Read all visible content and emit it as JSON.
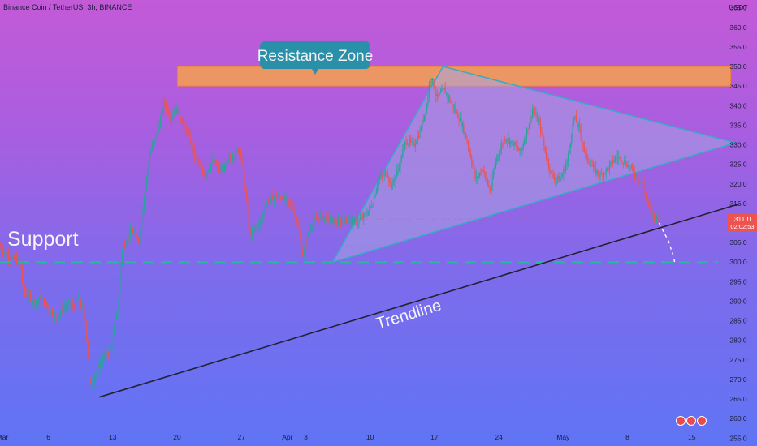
{
  "header": {
    "symbol_title": "Binance Coin / TetherUS, 3h, BINANCE"
  },
  "chart_data": {
    "type": "candlestick",
    "currency_label": "USDT",
    "ylim": [
      253,
      367
    ],
    "y_ticks": [
      255,
      260,
      265,
      270,
      275,
      280,
      285,
      290,
      295,
      300,
      305,
      310,
      315,
      320,
      325,
      330,
      335,
      340,
      345,
      350,
      355,
      360,
      365
    ],
    "x_range_days": [
      0,
      79
    ],
    "x_ticks": [
      {
        "label": "Mar",
        "day": 0
      },
      {
        "label": "6",
        "day": 5
      },
      {
        "label": "13",
        "day": 12
      },
      {
        "label": "20",
        "day": 19
      },
      {
        "label": "27",
        "day": 26
      },
      {
        "label": "Apr",
        "day": 31
      },
      {
        "label": "3",
        "day": 33
      },
      {
        "label": "10",
        "day": 40
      },
      {
        "label": "17",
        "day": 47
      },
      {
        "label": "24",
        "day": 54
      },
      {
        "label": "May",
        "day": 61
      },
      {
        "label": "8",
        "day": 68
      },
      {
        "label": "15",
        "day": 75
      }
    ],
    "current_price_label": "311.0",
    "countdown_label": "02:02:53",
    "current_price": 311.0,
    "price_path": [
      [
        0,
        304
      ],
      [
        1.2,
        301
      ],
      [
        2.3,
        300
      ],
      [
        2.6,
        293
      ],
      [
        3.6,
        290
      ],
      [
        4.5,
        291
      ],
      [
        5.5,
        288
      ],
      [
        6.2,
        286
      ],
      [
        7.2,
        289
      ],
      [
        8.2,
        289
      ],
      [
        8.6,
        291
      ],
      [
        9.4,
        285
      ],
      [
        9.8,
        268
      ],
      [
        10.5,
        272
      ],
      [
        11.4,
        276
      ],
      [
        12.2,
        278
      ],
      [
        12.9,
        290
      ],
      [
        13.4,
        304
      ],
      [
        14.3,
        308
      ],
      [
        15.2,
        306
      ],
      [
        15.8,
        318
      ],
      [
        16.4,
        328
      ],
      [
        17.2,
        333
      ],
      [
        17.9,
        341
      ],
      [
        18.6,
        337
      ],
      [
        19.3,
        339
      ],
      [
        20.3,
        334
      ],
      [
        20.9,
        330
      ],
      [
        21.3,
        327
      ],
      [
        22.3,
        322
      ],
      [
        23.2,
        326
      ],
      [
        24.2,
        323
      ],
      [
        25.2,
        327
      ],
      [
        26.2,
        329
      ],
      [
        26.8,
        318
      ],
      [
        27.2,
        307
      ],
      [
        28.3,
        310
      ],
      [
        29.2,
        316
      ],
      [
        30.2,
        317
      ],
      [
        31.2,
        316
      ],
      [
        32.2,
        313
      ],
      [
        33.0,
        302
      ],
      [
        33.8,
        309
      ],
      [
        34.8,
        312
      ],
      [
        35.7,
        311
      ],
      [
        36.8,
        310
      ],
      [
        37.8,
        311
      ],
      [
        38.8,
        310
      ],
      [
        39.8,
        312
      ],
      [
        40.6,
        315
      ],
      [
        41.2,
        321
      ],
      [
        42.2,
        323
      ],
      [
        42.6,
        319
      ],
      [
        43.4,
        324
      ],
      [
        44.2,
        331
      ],
      [
        45.1,
        330
      ],
      [
        45.7,
        333
      ],
      [
        46.5,
        340
      ],
      [
        46.9,
        348
      ],
      [
        47.6,
        342
      ],
      [
        48.4,
        344
      ],
      [
        49.3,
        340
      ],
      [
        50.2,
        336
      ],
      [
        51.0,
        330
      ],
      [
        51.8,
        321
      ],
      [
        52.6,
        324
      ],
      [
        53.4,
        318
      ],
      [
        54.1,
        327
      ],
      [
        55.1,
        332
      ],
      [
        56.0,
        330
      ],
      [
        56.7,
        328
      ],
      [
        57.3,
        333
      ],
      [
        58.0,
        339
      ],
      [
        58.8,
        335
      ],
      [
        59.4,
        328
      ],
      [
        60.1,
        322
      ],
      [
        61.0,
        321
      ],
      [
        61.8,
        326
      ],
      [
        62.5,
        337
      ],
      [
        63.1,
        334
      ],
      [
        63.8,
        327
      ],
      [
        64.6,
        324
      ],
      [
        65.4,
        322
      ],
      [
        66.2,
        324
      ],
      [
        67.1,
        327
      ],
      [
        67.9,
        326
      ],
      [
        68.7,
        324
      ],
      [
        69.3,
        322
      ],
      [
        70.0,
        320
      ],
      [
        70.5,
        315
      ],
      [
        71.0,
        312
      ],
      [
        71.7,
        311
      ]
    ],
    "annotations": {
      "resistance_zone": {
        "label": "Resistance Zone",
        "y_low": 345,
        "y_high": 350,
        "x_start": 19.3,
        "x_end": 79.5
      },
      "support": {
        "label": "Support",
        "y": 300
      },
      "trendline": {
        "label": "Trendline",
        "x1": 10.8,
        "y1": 265.5,
        "x2": 80.6,
        "y2": 315
      },
      "triangle": [
        [
          36.2,
          300
        ],
        [
          48.2,
          350
        ],
        [
          80.0,
          330.5
        ]
      ],
      "projection": [
        [
          71.7,
          310
        ],
        [
          72.7,
          305.5
        ],
        [
          73.2,
          302
        ],
        [
          73.4,
          300
        ]
      ]
    },
    "colors": {
      "up": "#26a69a",
      "down": "#ef5350",
      "resistance_fill": "#f6a14e",
      "resistance_border": "#f07c3a",
      "support_line": "#2ab3a3",
      "trendline": "#222233",
      "triangle_fill": "#a7a3e2",
      "triangle_edge": "#3aa9c8",
      "callout": "#2a8fa8",
      "price_badge": "#ef5350"
    }
  }
}
